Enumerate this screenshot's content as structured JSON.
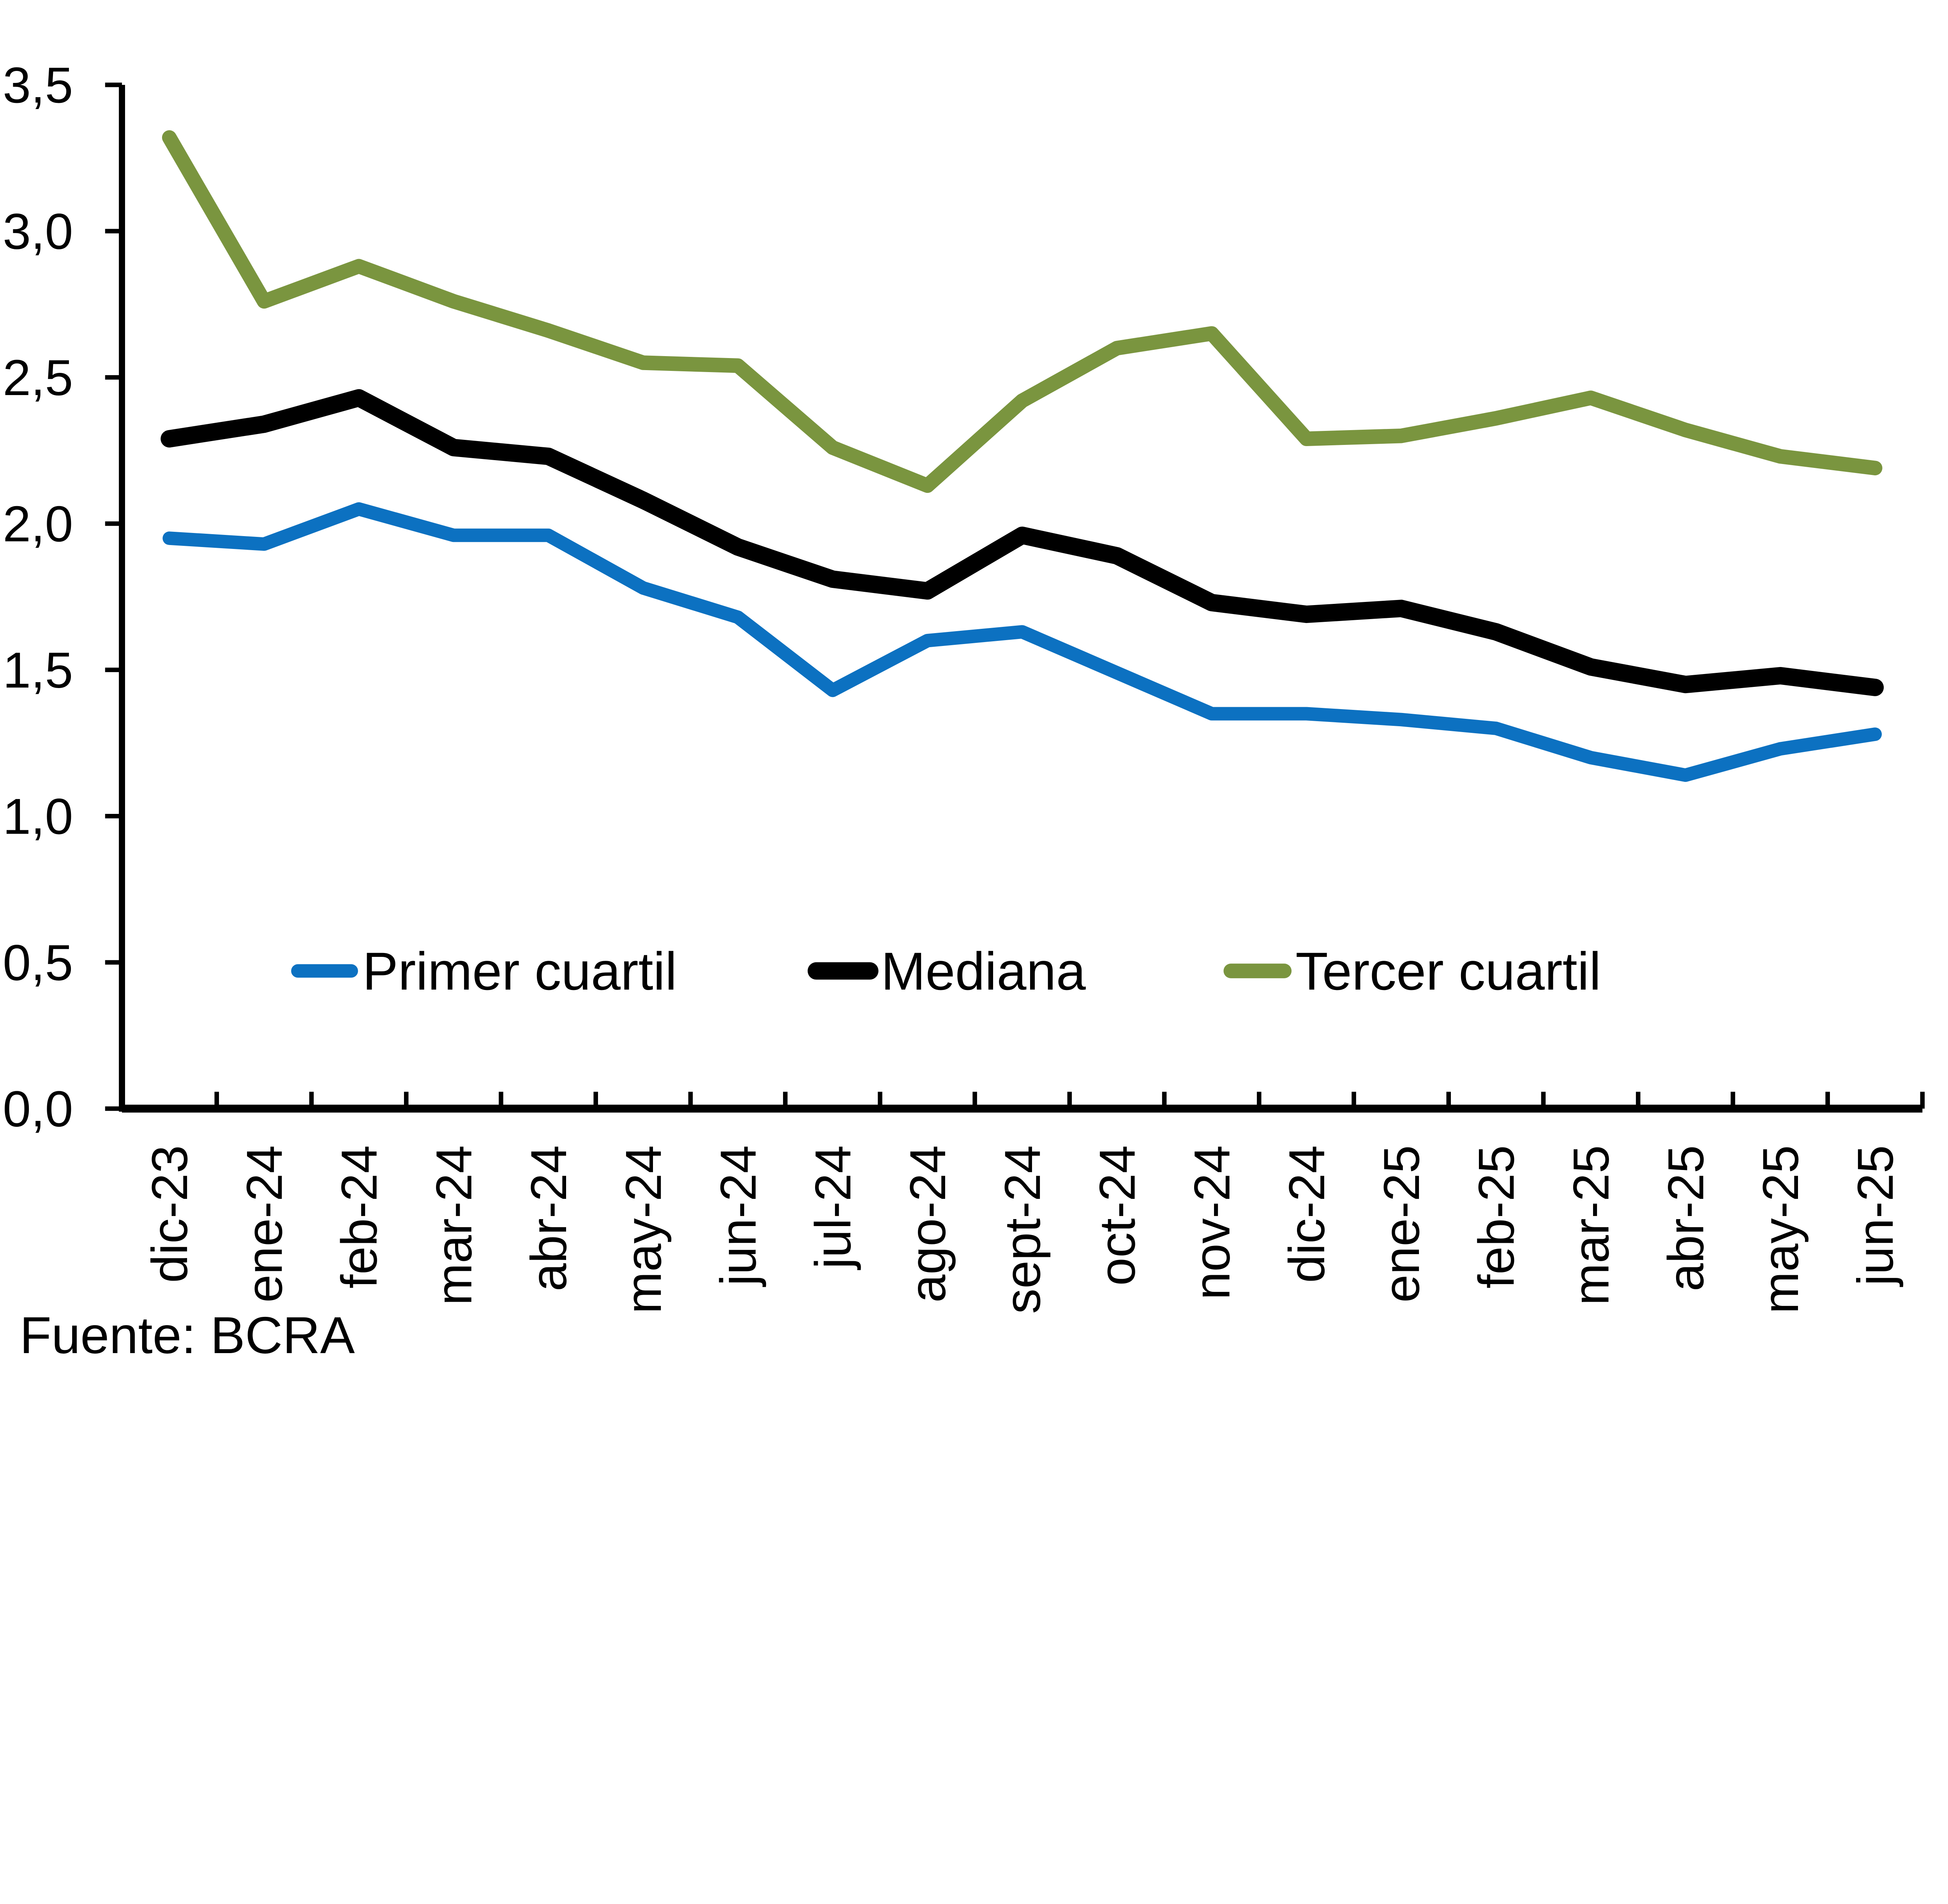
{
  "chart_data": {
    "type": "line",
    "title": "",
    "xlabel": "",
    "ylabel": "",
    "ylim": [
      0,
      3.5
    ],
    "ytick_step": 0.5,
    "decimal_separator": ",",
    "grid": false,
    "legend_position": "inside-bottom",
    "background_color": "#ffffff",
    "axis_color": "#000000",
    "ytick_labels": [
      "0,0",
      "0,5",
      "1,0",
      "1,5",
      "2,0",
      "2,5",
      "3,0",
      "3,5"
    ],
    "categories": [
      "dic-23",
      "ene-24",
      "feb-24",
      "mar-24",
      "abr-24",
      "may-24",
      "jun-24",
      "jul-24",
      "ago-24",
      "sept-24",
      "oct-24",
      "nov-24",
      "dic-24",
      "ene-25",
      "feb-25",
      "mar-25",
      "abr-25",
      "may-25",
      "jun-25"
    ],
    "series": [
      {
        "name": "Primer cuartil",
        "color": "#0C71C1",
        "values": [
          1.95,
          1.93,
          2.05,
          1.96,
          1.96,
          1.78,
          1.68,
          1.43,
          1.6,
          1.63,
          1.49,
          1.35,
          1.35,
          1.33,
          1.3,
          1.2,
          1.14,
          1.23,
          1.28
        ]
      },
      {
        "name": "Mediana",
        "color": "#000000",
        "values": [
          2.29,
          2.34,
          2.43,
          2.26,
          2.23,
          2.08,
          1.92,
          1.81,
          1.77,
          1.96,
          1.89,
          1.73,
          1.69,
          1.71,
          1.63,
          1.51,
          1.45,
          1.48,
          1.44
        ]
      },
      {
        "name": "Tercer cuartil",
        "color": "#7A953F",
        "values": [
          3.32,
          2.76,
          2.88,
          2.76,
          2.66,
          2.55,
          2.54,
          2.26,
          2.13,
          2.42,
          2.6,
          2.65,
          2.29,
          2.3,
          2.36,
          2.43,
          2.32,
          2.23,
          2.19
        ]
      }
    ]
  },
  "footer": {
    "source_label": "Fuente: BCRA"
  }
}
